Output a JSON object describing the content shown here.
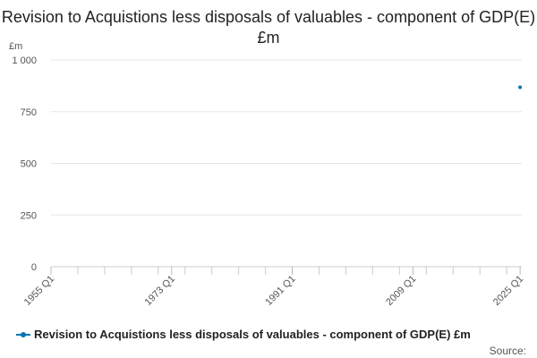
{
  "chart_data": {
    "type": "line",
    "title": "Revision to Acquistions less disposals of valuables - component of GDP(E) £m",
    "ylabel": "£m",
    "xlabel": "",
    "ylim": [
      0,
      1000
    ],
    "y_ticks": [
      "1 000",
      "750",
      "500",
      "250",
      "0"
    ],
    "y_tick_values": [
      1000,
      750,
      500,
      250,
      0
    ],
    "x_ticks": [
      "1955 Q1",
      "1973 Q1",
      "1991 Q1",
      "2009 Q1",
      "2025 Q1"
    ],
    "x_tick_years": [
      1955,
      1973,
      1991,
      2009,
      2025
    ],
    "xlim": [
      1955,
      2025.25
    ],
    "series": [
      {
        "name": "Revision to Acquistions less disposals of valuables - component of GDP(E) £m",
        "color": "#0075b0",
        "points": [
          {
            "x": "2025 Q1",
            "y": 868
          }
        ]
      }
    ],
    "grid": true,
    "legend_position": "bottom",
    "source_label": "Source:"
  }
}
